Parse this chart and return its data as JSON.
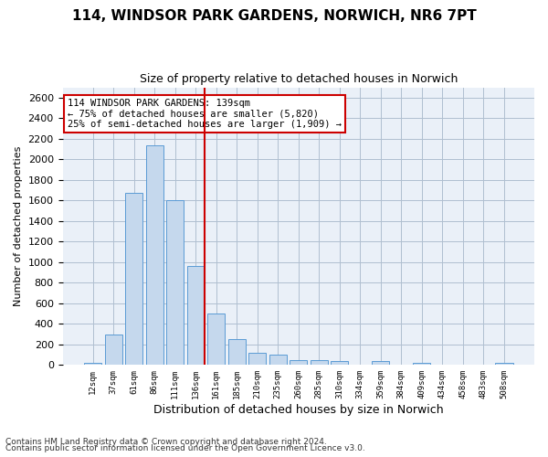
{
  "title": "114, WINDSOR PARK GARDENS, NORWICH, NR6 7PT",
  "subtitle": "Size of property relative to detached houses in Norwich",
  "xlabel": "Distribution of detached houses by size in Norwich",
  "ylabel": "Number of detached properties",
  "bar_labels": [
    "12sqm",
    "37sqm",
    "61sqm",
    "86sqm",
    "111sqm",
    "136sqm",
    "161sqm",
    "185sqm",
    "210sqm",
    "235sqm",
    "260sqm",
    "285sqm",
    "310sqm",
    "334sqm",
    "359sqm",
    "384sqm",
    "409sqm",
    "434sqm",
    "458sqm",
    "483sqm",
    "508sqm"
  ],
  "bar_values": [
    25,
    300,
    1670,
    2140,
    1600,
    960,
    500,
    250,
    120,
    100,
    50,
    50,
    35,
    0,
    35,
    0,
    25,
    0,
    0,
    0,
    25
  ],
  "bar_color": "#c5d8ed",
  "bar_edge_color": "#5b9bd5",
  "vline_x": 5.42,
  "vline_color": "#cc0000",
  "annotation_text": "114 WINDSOR PARK GARDENS: 139sqm\n← 75% of detached houses are smaller (5,820)\n25% of semi-detached houses are larger (1,909) →",
  "annotation_box_color": "#cc0000",
  "ylim": [
    0,
    2700
  ],
  "yticks": [
    0,
    200,
    400,
    600,
    800,
    1000,
    1200,
    1400,
    1600,
    1800,
    2000,
    2200,
    2400,
    2600
  ],
  "grid_color": "#b0bfd0",
  "background_color": "#eaf0f8",
  "footnote1": "Contains HM Land Registry data © Crown copyright and database right 2024.",
  "footnote2": "Contains public sector information licensed under the Open Government Licence v3.0.",
  "title_fontsize": 11,
  "subtitle_fontsize": 9
}
